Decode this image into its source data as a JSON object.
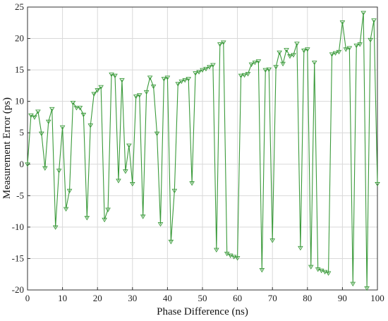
{
  "chart_data": {
    "type": "line",
    "title": "",
    "xlabel": "Phase Difference (ns)",
    "ylabel": "Measurement Error (ps)",
    "xlim": [
      0,
      100
    ],
    "ylim": [
      -20,
      25
    ],
    "x_ticks": [
      0,
      10,
      20,
      30,
      40,
      50,
      60,
      70,
      80,
      90,
      100
    ],
    "y_ticks": [
      -20,
      -15,
      -10,
      -5,
      0,
      5,
      10,
      15,
      20,
      25
    ],
    "x_tick_labels": [
      "0",
      "10",
      "20",
      "30",
      "40",
      "50",
      "60",
      "70",
      "80",
      "90",
      "100"
    ],
    "y_tick_labels": [
      "-20",
      "-15",
      "-10",
      "-5",
      "0",
      "5",
      "10",
      "15",
      "20",
      "25"
    ],
    "grid": true,
    "legend": "none",
    "marker": "triangle-down-open",
    "line_color": "#3a9a3a",
    "series": [
      {
        "x": [
          0,
          1,
          2,
          3,
          4,
          5,
          6,
          7,
          8,
          9,
          10,
          11,
          12,
          13,
          14,
          15,
          16,
          17,
          18,
          19,
          20,
          21,
          22,
          23,
          24,
          25,
          26,
          27,
          28,
          29,
          30,
          31,
          32,
          33,
          34,
          35,
          36,
          37,
          38,
          39,
          40,
          41,
          42,
          43,
          44,
          45,
          46,
          47,
          48,
          49,
          50,
          51,
          52,
          53,
          54,
          55,
          56,
          57,
          58,
          59,
          60,
          61,
          62,
          63,
          64,
          65,
          66,
          67,
          68,
          69,
          70,
          71,
          72,
          73,
          74,
          75,
          76,
          77,
          78,
          79,
          80,
          81,
          82,
          83,
          84,
          85,
          86,
          87,
          88,
          89,
          90,
          91,
          92,
          93,
          94,
          95,
          96,
          97,
          98,
          99,
          100
        ],
        "y": [
          0,
          7.8,
          7.5,
          8.4,
          4.9,
          -0.6,
          6.8,
          8.8,
          -10,
          -1,
          5.9,
          -7.1,
          -4.2,
          9.8,
          9,
          9,
          7.9,
          -8.5,
          6.2,
          11.2,
          11.8,
          12.3,
          -8.8,
          -7.2,
          14.3,
          14.1,
          -2.6,
          13.4,
          -1.1,
          3.0,
          -3.1,
          10.8,
          11.0,
          -8.3,
          11.5,
          13.8,
          12.4,
          4.9,
          -9.5,
          13.6,
          13.8,
          -12.3,
          -4.2,
          12.8,
          13.2,
          13.4,
          13.6,
          -3.0,
          14.5,
          14.7,
          15.0,
          15.2,
          15.5,
          15.8,
          -13.6,
          19.1,
          19.4,
          -14.2,
          -14.5,
          -14.7,
          -14.9,
          14.1,
          14.2,
          14.4,
          15.9,
          16.2,
          16.4,
          -16.8,
          15.0,
          15.1,
          -12.1,
          15.5,
          17.8,
          16.0,
          18.2,
          17.2,
          17.4,
          19.2,
          -13.3,
          18.1,
          18.3,
          -16.3,
          16.2,
          -16.7,
          -16.9,
          -17.1,
          -17.3,
          17.5,
          17.7,
          17.9,
          22.6,
          18.3,
          18.5,
          -19.0,
          18.9,
          19.1,
          24.1,
          -19.7,
          19.8,
          22.9,
          -3.1
        ]
      }
    ]
  }
}
